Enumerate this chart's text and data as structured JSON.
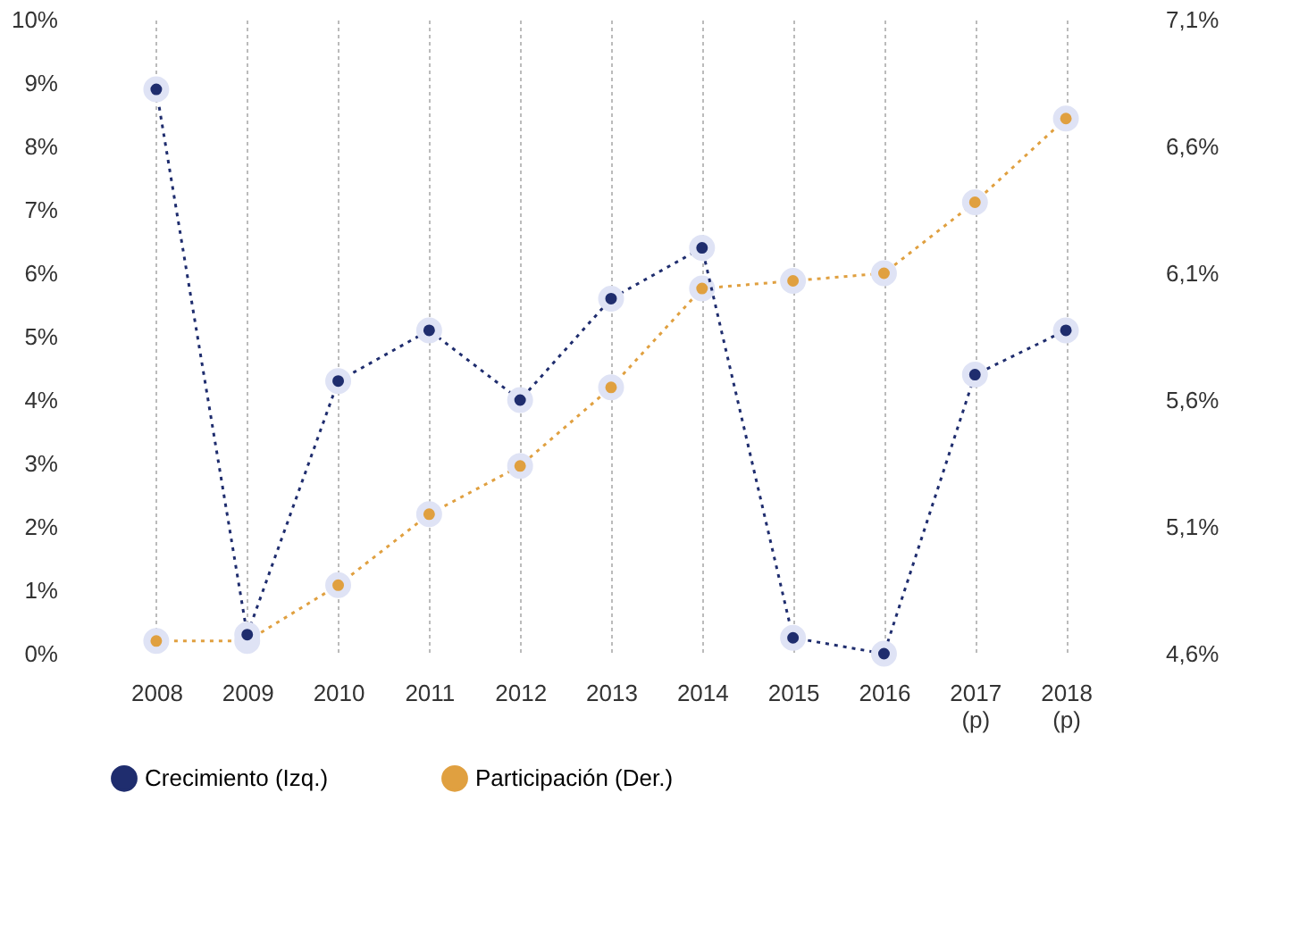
{
  "chart_data": {
    "type": "line",
    "categories": [
      "2008",
      "2009",
      "2010",
      "2011",
      "2012",
      "2013",
      "2014",
      "2015",
      "2016",
      "2017\n(p)",
      "2018\n(p)"
    ],
    "series": [
      {
        "name": "Crecimiento (Izq.)",
        "color": "#1f2d6e",
        "values": [
          8.9,
          0.3,
          4.3,
          5.1,
          4.0,
          5.6,
          6.4,
          0.25,
          0.0,
          4.4,
          5.1
        ]
      },
      {
        "name": "Participación (Der.)",
        "color": "#e0a040",
        "axis": "y2",
        "values": [
          4.65,
          4.65,
          4.87,
          5.15,
          5.34,
          5.65,
          6.04,
          6.07,
          6.1,
          6.38,
          6.71
        ]
      }
    ],
    "ylim": [
      0,
      10
    ],
    "yticks": [
      {
        "value": 0,
        "label": "0%"
      },
      {
        "value": 1,
        "label": "1%"
      },
      {
        "value": 2,
        "label": "2%"
      },
      {
        "value": 3,
        "label": "3%"
      },
      {
        "value": 4,
        "label": "4%"
      },
      {
        "value": 5,
        "label": "5%"
      },
      {
        "value": 6,
        "label": "6%"
      },
      {
        "value": 7,
        "label": "7%"
      },
      {
        "value": 8,
        "label": "8%"
      },
      {
        "value": 9,
        "label": "9%"
      },
      {
        "value": 10,
        "label": "10%"
      }
    ],
    "y2lim": [
      4.6,
      7.1
    ],
    "y2ticks": [
      {
        "value": 4.6,
        "label": "4,6%"
      },
      {
        "value": 5.1,
        "label": "5,1%"
      },
      {
        "value": 5.6,
        "label": "5,6%"
      },
      {
        "value": 6.1,
        "label": "6,1%"
      },
      {
        "value": 6.6,
        "label": "6,6%"
      },
      {
        "value": 7.1,
        "label": "7,1%"
      }
    ],
    "grid": "x",
    "legend": "bottom",
    "marker": "circle",
    "line_style": "dotted"
  }
}
